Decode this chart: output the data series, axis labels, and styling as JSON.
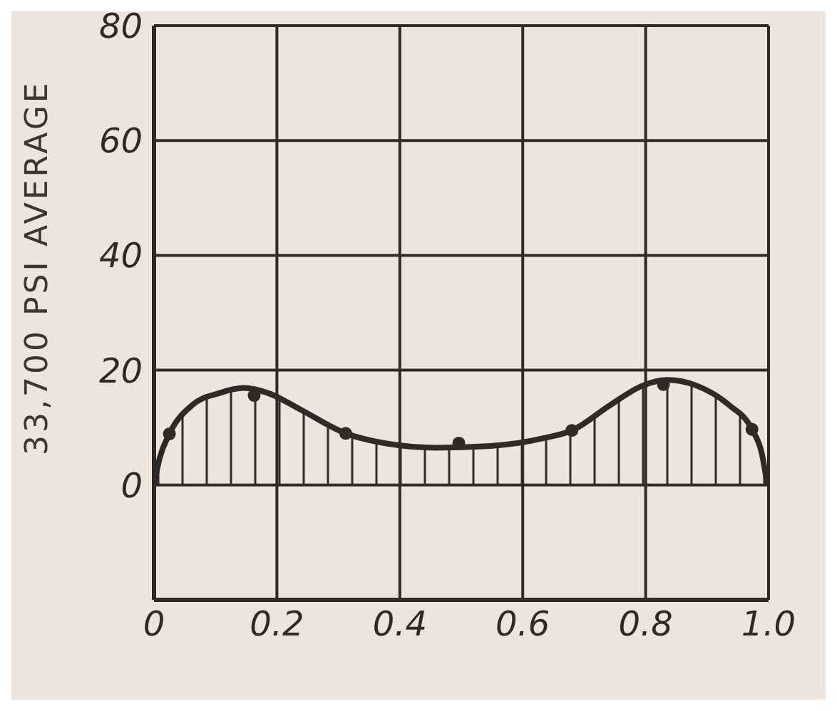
{
  "chart_data": {
    "type": "area",
    "ylabel": "33,700 PSI AVERAGE",
    "xlim": [
      0,
      1
    ],
    "xticks": [
      0,
      0.2,
      0.4,
      0.6,
      0.8,
      {
        "value": 1,
        "label": "1.0"
      }
    ],
    "ylim": [
      -20,
      80
    ],
    "yticks": [
      {
        "value": -20,
        "label": null
      },
      0,
      20,
      40,
      60,
      80
    ],
    "grid": true,
    "series": [
      {
        "color": "#2e2a28",
        "x": [
          0,
          0.009,
          0.025,
          0.062,
          0.106,
          0.146,
          0.186,
          0.239,
          0.312,
          0.38,
          0.46,
          0.548,
          0.636,
          0.68,
          0.742,
          0.795,
          0.835,
          0.883,
          0.936,
          0.973,
          0.989,
          0.998
        ],
        "values": [
          0,
          4.6,
          8.9,
          13.9,
          16,
          16.9,
          16,
          13.1,
          9,
          7.2,
          6.5,
          6.8,
          8.2,
          9.5,
          13.9,
          17.3,
          18.3,
          17.3,
          13.9,
          9.7,
          5.5,
          0
        ]
      },
      {
        "type": "scatter",
        "color": "#2e2a28",
        "marker": "circle",
        "x": [
          0.025,
          0.163,
          0.312,
          0.496,
          0.68,
          0.829,
          0.973
        ],
        "values": [
          8.9,
          15.6,
          9,
          7.3,
          9.5,
          17.5,
          9.7
        ]
      }
    ]
  }
}
